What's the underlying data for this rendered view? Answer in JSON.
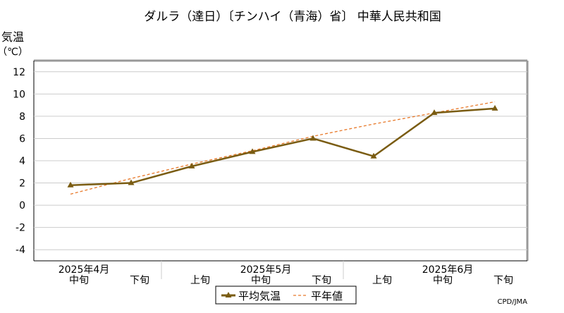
{
  "chart_data": {
    "type": "line",
    "title": "ダルラ（達日）〔チンハイ（青海）省〕 中華人民共和国",
    "ylabel": "気温",
    "yunit": "（℃）",
    "ylim": [
      -5,
      13
    ],
    "yticks": [
      12,
      10,
      8,
      6,
      4,
      2,
      0,
      -2,
      -4
    ],
    "grid": true,
    "legend_position": "bottom-center",
    "x_tick_labels": [
      "中旬",
      "下旬",
      "上旬",
      "中旬",
      "下旬",
      "上旬",
      "中旬",
      "下旬"
    ],
    "month_labels": [
      {
        "label": "2025年4月",
        "index": 0
      },
      {
        "label": "2025年5月",
        "index": 3
      },
      {
        "label": "2025年6月",
        "index": 6
      }
    ],
    "series": [
      {
        "name": "平均気温",
        "color": "#7a5c12",
        "style": "solid",
        "marker": "triangle",
        "values": [
          1.8,
          2.0,
          3.5,
          4.8,
          6.0,
          4.4,
          8.3,
          8.7
        ]
      },
      {
        "name": "平年値",
        "color": "#e8792a",
        "style": "dashed",
        "marker": "none",
        "values": [
          1.0,
          2.4,
          3.7,
          4.9,
          6.2,
          7.3,
          8.3,
          9.3
        ]
      }
    ],
    "credit": "CPD/JMA"
  }
}
